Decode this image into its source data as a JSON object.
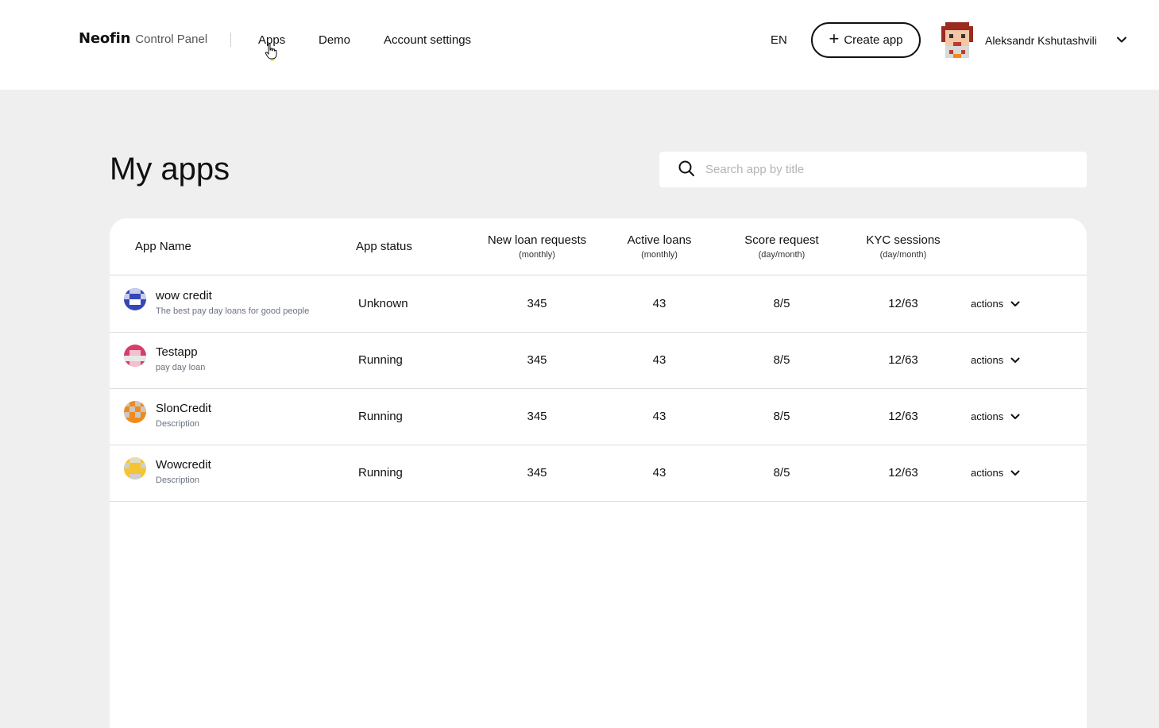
{
  "header": {
    "logo": {
      "brand": "Neofin",
      "product": "Control Panel"
    },
    "nav": [
      {
        "label": "Apps"
      },
      {
        "label": "Demo"
      },
      {
        "label": "Account settings"
      }
    ],
    "language": "EN",
    "create_button": "Create app",
    "user": {
      "name": "Aleksandr Kshutashvili"
    }
  },
  "page": {
    "title": "My apps",
    "search": {
      "placeholder": "Search app by title",
      "value": ""
    }
  },
  "table": {
    "columns": [
      {
        "label": "App Name",
        "sub": ""
      },
      {
        "label": "App status",
        "sub": ""
      },
      {
        "label": "New loan requests",
        "sub": "(monthly)"
      },
      {
        "label": "Active loans",
        "sub": "(monthly)"
      },
      {
        "label": "Score request",
        "sub": "(day/month)"
      },
      {
        "label": "KYC sessions",
        "sub": "(day/month)"
      }
    ],
    "actions_label": "actions",
    "rows": [
      {
        "name": "wow credit",
        "description": "The best pay day loans for good people",
        "status": "Unknown",
        "new_loans": "345",
        "active_loans": "43",
        "score": "8/5",
        "kyc": "12/63",
        "icon_color": "#3547b8"
      },
      {
        "name": "Testapp",
        "description": "pay day loan",
        "status": "Running",
        "new_loans": "345",
        "active_loans": "43",
        "score": "8/5",
        "kyc": "12/63",
        "icon_color": "#d63d6b"
      },
      {
        "name": "SlonCredit",
        "description": "Description",
        "status": "Running",
        "new_loans": "345",
        "active_loans": "43",
        "score": "8/5",
        "kyc": "12/63",
        "icon_color": "#f08a1c"
      },
      {
        "name": "Wowcredit",
        "description": "Description",
        "status": "Running",
        "new_loans": "345",
        "active_loans": "43",
        "score": "8/5",
        "kyc": "12/63",
        "icon_color": "#f5c431"
      }
    ]
  }
}
